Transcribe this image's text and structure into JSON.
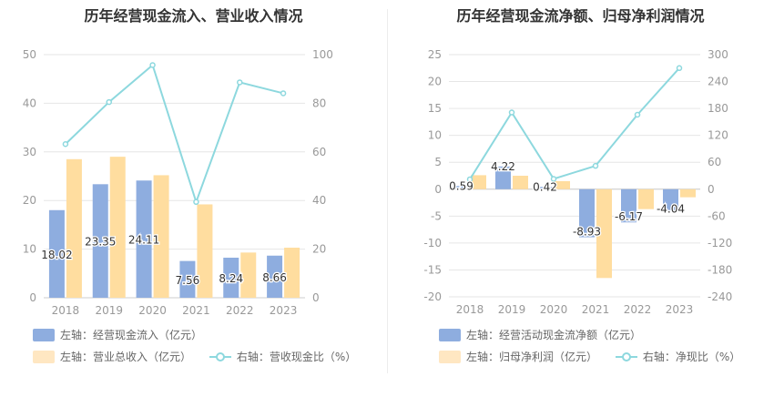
{
  "charts": [
    {
      "title": "历年经营现金流入、营业收入情况",
      "legend": [
        {
          "label": "左轴：经营现金流入（亿元）",
          "kind": "bar",
          "color": "#8eaddf"
        },
        {
          "label": "左轴：营业总收入（亿元）",
          "kind": "bar",
          "color": "#ffdd9f"
        },
        {
          "label": "右轴：营收现金比（%）",
          "kind": "line",
          "color": "#8dd8de"
        }
      ]
    },
    {
      "title": "历年经营现金流净额、归母净利润情况",
      "legend": [
        {
          "label": "左轴：经营活动现金流净额（亿元）",
          "kind": "bar",
          "color": "#8eaddf"
        },
        {
          "label": "左轴：归母净利润（亿元）",
          "kind": "bar",
          "color": "#ffdd9f"
        },
        {
          "label": "右轴：净现比（%）",
          "kind": "line",
          "color": "#8dd8de"
        }
      ]
    }
  ],
  "chart_data": [
    {
      "type": "bar",
      "title": "历年经营现金流入、营业收入情况",
      "categories": [
        "2018",
        "2019",
        "2020",
        "2021",
        "2022",
        "2023"
      ],
      "ylim": [
        0,
        50
      ],
      "y_ticks": [
        0,
        10,
        20,
        30,
        40,
        50
      ],
      "y2lim": [
        0,
        100
      ],
      "y2_ticks": [
        0,
        20,
        40,
        60,
        80,
        100
      ],
      "grid": true,
      "series": [
        {
          "name": "左轴：经营现金流入（亿元）",
          "type": "bar",
          "axis": "left",
          "color": "#8eaddf",
          "values": [
            18.02,
            23.35,
            24.11,
            7.56,
            8.24,
            8.66
          ],
          "labels": [
            "18.02",
            "23.35",
            "24.11",
            "7.56",
            "8.24",
            "8.66"
          ]
        },
        {
          "name": "左轴：营业总收入（亿元）",
          "type": "bar",
          "axis": "left",
          "color": "#ffdd9f",
          "values": [
            28.5,
            29.0,
            25.2,
            19.2,
            9.3,
            10.3
          ]
        },
        {
          "name": "右轴：营收现金比（%）",
          "type": "line",
          "axis": "right",
          "color": "#8dd8de",
          "values": [
            63.2,
            80.5,
            95.7,
            39.4,
            88.6,
            84.1
          ]
        }
      ]
    },
    {
      "type": "bar",
      "title": "历年经营现金流净额、归母净利润情况",
      "categories": [
        "2018",
        "2019",
        "2020",
        "2021",
        "2022",
        "2023"
      ],
      "ylim": [
        -20,
        25
      ],
      "y_ticks": [
        -20,
        -15,
        -10,
        -5,
        0,
        5,
        10,
        15,
        20,
        25
      ],
      "y2lim": [
        -240,
        300
      ],
      "y2_ticks": [
        -240,
        -180,
        -120,
        -60,
        0,
        60,
        120,
        180,
        240,
        300
      ],
      "grid": true,
      "series": [
        {
          "name": "左轴：经营活动现金流净额（亿元）",
          "type": "bar",
          "axis": "left",
          "color": "#8eaddf",
          "values": [
            0.59,
            4.22,
            0.42,
            -8.93,
            -6.17,
            -4.04
          ],
          "labels": [
            "0.59",
            "4.22",
            "0.42",
            "-8.93",
            "-6.17",
            "-4.04"
          ]
        },
        {
          "name": "左轴：归母净利润（亿元）",
          "type": "bar",
          "axis": "left",
          "color": "#ffdd9f",
          "values": [
            2.6,
            2.5,
            1.5,
            -16.5,
            -3.7,
            -1.5
          ]
        },
        {
          "name": "右轴：净现比（%）",
          "type": "line",
          "axis": "right",
          "color": "#8dd8de",
          "values": [
            22,
            171,
            23,
            52,
            166,
            270
          ]
        }
      ]
    }
  ]
}
